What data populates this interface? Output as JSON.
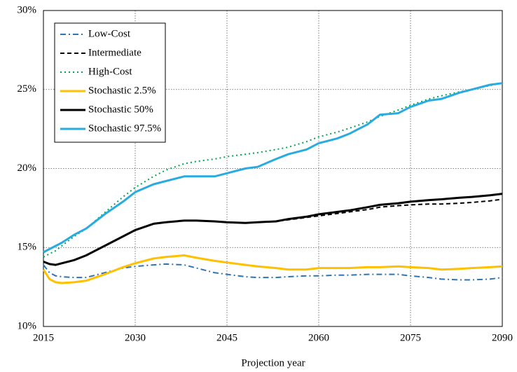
{
  "chart_data": {
    "type": "line",
    "x_label": "Projection year",
    "x": [
      2015,
      2016,
      2017,
      2018,
      2020,
      2022,
      2025,
      2028,
      2030,
      2033,
      2035,
      2038,
      2040,
      2043,
      2045,
      2048,
      2050,
      2053,
      2055,
      2058,
      2060,
      2063,
      2065,
      2068,
      2070,
      2073,
      2075,
      2078,
      2080,
      2083,
      2085,
      2088,
      2090
    ],
    "xlim": [
      2015,
      2090
    ],
    "xticks": [
      2015,
      2030,
      2045,
      2060,
      2075,
      2090
    ],
    "ylim": [
      10,
      30
    ],
    "yticks": [
      {
        "value": 10,
        "label": "10%"
      },
      {
        "value": 15,
        "label": "15%"
      },
      {
        "value": 20,
        "label": "20%"
      },
      {
        "value": 25,
        "label": "25%"
      },
      {
        "value": 30,
        "label": "30%"
      }
    ],
    "grid": true,
    "legend": "upper left",
    "series": [
      {
        "name": "Low-Cost",
        "color": "#2e75b6",
        "dash": "dashdot",
        "values": [
          13.9,
          13.4,
          13.2,
          13.15,
          13.1,
          13.1,
          13.4,
          13.7,
          13.8,
          13.9,
          13.95,
          13.9,
          13.7,
          13.4,
          13.3,
          13.15,
          13.1,
          13.1,
          13.15,
          13.2,
          13.2,
          13.25,
          13.25,
          13.3,
          13.3,
          13.3,
          13.2,
          13.1,
          13.0,
          12.95,
          12.95,
          13.0,
          13.1
        ]
      },
      {
        "name": "Intermediate",
        "color": "#000000",
        "dash": "dashed",
        "values": [
          14.1,
          13.95,
          13.9,
          14.0,
          14.2,
          14.5,
          15.1,
          15.7,
          16.1,
          16.5,
          16.6,
          16.7,
          16.7,
          16.65,
          16.6,
          16.55,
          16.6,
          16.65,
          16.75,
          16.9,
          17.0,
          17.15,
          17.25,
          17.4,
          17.55,
          17.65,
          17.7,
          17.75,
          17.75,
          17.8,
          17.85,
          17.95,
          18.05
        ]
      },
      {
        "name": "High-Cost",
        "color": "#00a651",
        "dash": "dotted",
        "values": [
          14.4,
          14.6,
          14.8,
          15.1,
          15.7,
          16.2,
          17.2,
          18.2,
          18.8,
          19.5,
          19.9,
          20.3,
          20.45,
          20.6,
          20.75,
          20.9,
          21.0,
          21.2,
          21.35,
          21.7,
          22.0,
          22.3,
          22.55,
          22.95,
          23.3,
          23.7,
          24.0,
          24.4,
          24.6,
          24.85,
          25.0,
          25.25,
          25.4
        ]
      },
      {
        "name": "Stochastic 2.5%",
        "color": "#ffc000",
        "dash": "solid",
        "values": [
          13.6,
          13.0,
          12.8,
          12.75,
          12.8,
          12.9,
          13.3,
          13.75,
          14.0,
          14.3,
          14.4,
          14.5,
          14.35,
          14.15,
          14.05,
          13.9,
          13.8,
          13.7,
          13.6,
          13.6,
          13.7,
          13.7,
          13.7,
          13.75,
          13.75,
          13.8,
          13.75,
          13.7,
          13.6,
          13.65,
          13.7,
          13.75,
          13.8
        ]
      },
      {
        "name": "Stochastic 50%",
        "color": "#000000",
        "dash": "solid",
        "values": [
          14.1,
          13.95,
          13.9,
          14.0,
          14.2,
          14.5,
          15.1,
          15.7,
          16.1,
          16.5,
          16.6,
          16.7,
          16.7,
          16.65,
          16.6,
          16.55,
          16.6,
          16.65,
          16.8,
          16.95,
          17.1,
          17.25,
          17.35,
          17.55,
          17.7,
          17.8,
          17.9,
          18.0,
          18.05,
          18.15,
          18.2,
          18.3,
          18.4
        ]
      },
      {
        "name": "Stochastic 97.5%",
        "color": "#29abe2",
        "dash": "solid",
        "values": [
          14.7,
          14.9,
          15.1,
          15.3,
          15.8,
          16.2,
          17.1,
          17.9,
          18.5,
          19.0,
          19.2,
          19.5,
          19.5,
          19.5,
          19.7,
          20.0,
          20.1,
          20.6,
          20.9,
          21.2,
          21.6,
          21.9,
          22.2,
          22.8,
          23.4,
          23.5,
          23.9,
          24.3,
          24.4,
          24.8,
          25.0,
          25.3,
          25.4
        ]
      }
    ]
  }
}
